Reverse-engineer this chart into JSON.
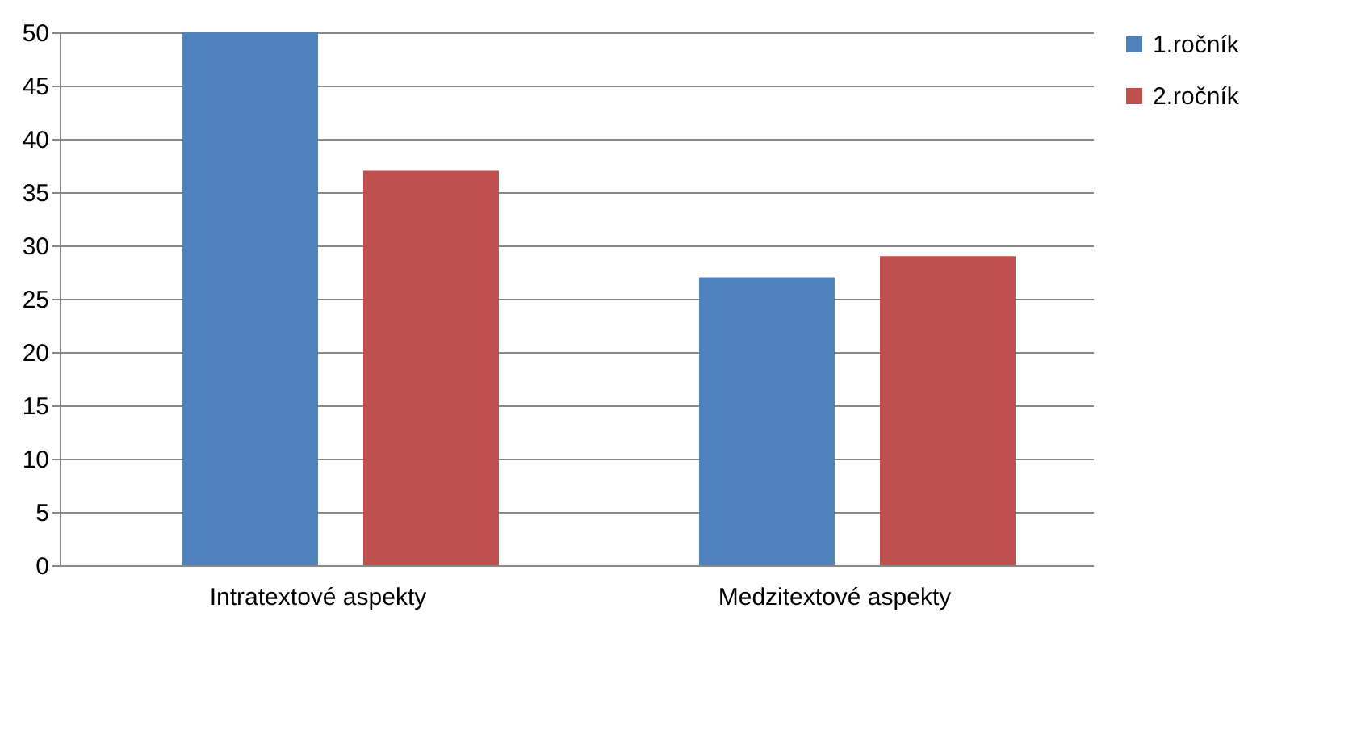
{
  "chart_data": {
    "type": "bar",
    "categories": [
      "Intratextové aspekty",
      "Medzitextové aspekty"
    ],
    "series": [
      {
        "name": "1.ročník",
        "color": "#4f81bd",
        "values": [
          50,
          27
        ]
      },
      {
        "name": "2.ročník",
        "color": "#c0504d",
        "values": [
          37,
          29
        ]
      }
    ],
    "ylim": [
      0,
      50
    ],
    "yticks": [
      0,
      5,
      10,
      15,
      20,
      25,
      30,
      35,
      40,
      45,
      50
    ],
    "grid": "y",
    "legend": "right"
  }
}
